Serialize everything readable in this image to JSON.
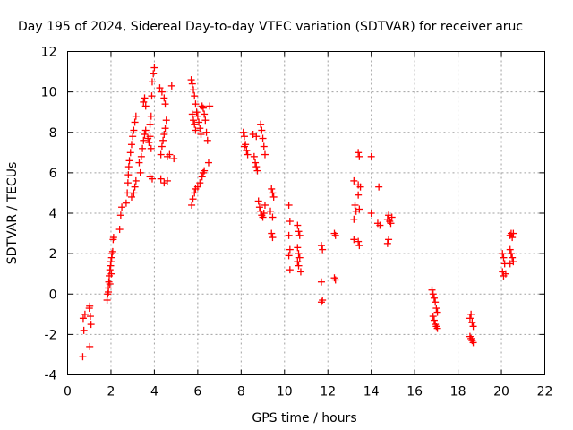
{
  "chart_data": {
    "type": "scatter",
    "title": "Day 195 of 2024, Sidereal Day-to-day VTEC variation (SDTVAR) for receiver aruc",
    "xlabel": "GPS time / hours",
    "ylabel": "SDTVAR / TECUs",
    "xlim": [
      0,
      22
    ],
    "ylim": [
      -4,
      12
    ],
    "xticks": [
      "0",
      "2",
      "4",
      "6",
      "8",
      "10",
      "12",
      "14",
      "16",
      "18",
      "20",
      "22"
    ],
    "yticks": [
      "-4",
      "-2",
      "0",
      "2",
      "4",
      "6",
      "8",
      "10",
      "12"
    ],
    "grid": true,
    "marker": "+",
    "color": "#ff0000",
    "series": [
      {
        "name": "SDTVAR",
        "points": [
          [
            0.7,
            -3.1
          ],
          [
            0.75,
            -1.8
          ],
          [
            0.72,
            -1.2
          ],
          [
            0.8,
            -1.0
          ],
          [
            1.0,
            -0.7
          ],
          [
            1.02,
            -0.6
          ],
          [
            1.05,
            -1.1
          ],
          [
            1.08,
            -1.5
          ],
          [
            1.02,
            -2.6
          ],
          [
            1.82,
            -0.3
          ],
          [
            1.85,
            0.0
          ],
          [
            1.88,
            0.3
          ],
          [
            1.9,
            0.6
          ],
          [
            1.92,
            0.9
          ],
          [
            1.95,
            1.2
          ],
          [
            1.98,
            1.4
          ],
          [
            2.0,
            1.6
          ],
          [
            2.03,
            1.8
          ],
          [
            2.05,
            2.0
          ],
          [
            2.08,
            2.1
          ],
          [
            2.1,
            2.7
          ],
          [
            2.12,
            2.8
          ],
          [
            1.88,
            0.1
          ],
          [
            1.95,
            0.5
          ],
          [
            2.02,
            1.0
          ],
          [
            2.4,
            3.2
          ],
          [
            2.45,
            3.9
          ],
          [
            2.5,
            4.3
          ],
          [
            2.7,
            4.5
          ],
          [
            2.75,
            5.0
          ],
          [
            2.78,
            5.5
          ],
          [
            2.8,
            5.9
          ],
          [
            2.82,
            6.3
          ],
          [
            2.85,
            6.6
          ],
          [
            2.9,
            7.0
          ],
          [
            2.95,
            7.4
          ],
          [
            3.0,
            7.8
          ],
          [
            3.05,
            8.1
          ],
          [
            3.1,
            8.5
          ],
          [
            3.15,
            8.8
          ],
          [
            2.95,
            4.8
          ],
          [
            3.05,
            5.0
          ],
          [
            3.1,
            5.3
          ],
          [
            3.15,
            5.6
          ],
          [
            3.3,
            6.5
          ],
          [
            3.35,
            6.0
          ],
          [
            3.4,
            6.8
          ],
          [
            3.45,
            7.2
          ],
          [
            3.5,
            7.6
          ],
          [
            3.55,
            7.9
          ],
          [
            3.6,
            8.1
          ],
          [
            3.5,
            9.5
          ],
          [
            3.55,
            9.7
          ],
          [
            3.6,
            9.3
          ],
          [
            3.7,
            7.7
          ],
          [
            3.75,
            7.5
          ],
          [
            3.8,
            7.8
          ],
          [
            3.85,
            7.2
          ],
          [
            3.9,
            10.5
          ],
          [
            3.95,
            10.9
          ],
          [
            4.0,
            11.2
          ],
          [
            3.88,
            9.8
          ],
          [
            3.8,
            8.4
          ],
          [
            3.85,
            8.8
          ],
          [
            3.8,
            5.8
          ],
          [
            3.9,
            5.7
          ],
          [
            4.3,
            6.9
          ],
          [
            4.35,
            7.3
          ],
          [
            4.4,
            7.6
          ],
          [
            4.45,
            7.9
          ],
          [
            4.5,
            8.2
          ],
          [
            4.55,
            8.6
          ],
          [
            4.25,
            10.2
          ],
          [
            4.35,
            10.0
          ],
          [
            4.45,
            9.7
          ],
          [
            4.5,
            9.4
          ],
          [
            4.6,
            6.8
          ],
          [
            4.7,
            6.9
          ],
          [
            4.8,
            10.3
          ],
          [
            4.9,
            6.7
          ],
          [
            4.3,
            5.7
          ],
          [
            4.45,
            5.5
          ],
          [
            4.6,
            5.6
          ],
          [
            5.7,
            10.6
          ],
          [
            5.75,
            10.4
          ],
          [
            5.8,
            10.1
          ],
          [
            5.85,
            9.8
          ],
          [
            5.9,
            9.4
          ],
          [
            5.95,
            9.0
          ],
          [
            6.0,
            8.8
          ],
          [
            6.05,
            8.5
          ],
          [
            6.1,
            8.2
          ],
          [
            6.15,
            7.9
          ],
          [
            5.75,
            8.9
          ],
          [
            5.8,
            8.6
          ],
          [
            5.85,
            8.4
          ],
          [
            5.9,
            8.1
          ],
          [
            6.2,
            9.3
          ],
          [
            6.25,
            9.2
          ],
          [
            6.3,
            8.9
          ],
          [
            6.35,
            8.6
          ],
          [
            6.4,
            8.0
          ],
          [
            5.72,
            4.4
          ],
          [
            5.78,
            4.7
          ],
          [
            5.85,
            5.0
          ],
          [
            5.9,
            5.2
          ],
          [
            6.0,
            5.3
          ],
          [
            6.1,
            5.5
          ],
          [
            6.2,
            5.8
          ],
          [
            6.25,
            6.0
          ],
          [
            6.3,
            6.1
          ],
          [
            6.5,
            6.5
          ],
          [
            6.45,
            7.6
          ],
          [
            6.55,
            9.3
          ],
          [
            8.1,
            8.0
          ],
          [
            8.15,
            7.8
          ],
          [
            8.2,
            7.4
          ],
          [
            8.25,
            7.1
          ],
          [
            8.3,
            6.9
          ],
          [
            8.15,
            7.3
          ],
          [
            8.55,
            7.9
          ],
          [
            8.6,
            6.8
          ],
          [
            8.65,
            6.5
          ],
          [
            8.7,
            6.3
          ],
          [
            8.75,
            6.1
          ],
          [
            8.7,
            7.8
          ],
          [
            8.8,
            4.6
          ],
          [
            8.85,
            4.3
          ],
          [
            8.9,
            4.1
          ],
          [
            8.95,
            3.9
          ],
          [
            9.0,
            3.8
          ],
          [
            9.05,
            4.0
          ],
          [
            8.9,
            8.4
          ],
          [
            8.95,
            8.1
          ],
          [
            9.0,
            7.7
          ],
          [
            9.05,
            7.3
          ],
          [
            9.1,
            6.9
          ],
          [
            9.1,
            4.4
          ],
          [
            9.4,
            5.2
          ],
          [
            9.45,
            5.0
          ],
          [
            9.5,
            4.8
          ],
          [
            9.35,
            4.1
          ],
          [
            9.45,
            3.8
          ],
          [
            9.4,
            3.0
          ],
          [
            9.45,
            2.8
          ],
          [
            10.2,
            4.4
          ],
          [
            10.25,
            3.6
          ],
          [
            10.2,
            2.9
          ],
          [
            10.25,
            2.2
          ],
          [
            10.2,
            1.9
          ],
          [
            10.25,
            1.2
          ],
          [
            10.6,
            3.4
          ],
          [
            10.65,
            3.1
          ],
          [
            10.7,
            2.9
          ],
          [
            10.6,
            2.3
          ],
          [
            10.65,
            2.0
          ],
          [
            10.7,
            1.8
          ],
          [
            10.6,
            1.6
          ],
          [
            10.65,
            1.4
          ],
          [
            10.75,
            1.1
          ],
          [
            11.7,
            2.4
          ],
          [
            11.75,
            2.2
          ],
          [
            11.7,
            0.6
          ],
          [
            11.75,
            -0.3
          ],
          [
            11.7,
            -0.4
          ],
          [
            12.3,
            3.0
          ],
          [
            12.35,
            2.9
          ],
          [
            12.3,
            0.8
          ],
          [
            12.35,
            0.7
          ],
          [
            13.2,
            5.6
          ],
          [
            13.25,
            4.4
          ],
          [
            13.2,
            3.7
          ],
          [
            13.3,
            4.1
          ],
          [
            13.2,
            2.7
          ],
          [
            13.4,
            7.0
          ],
          [
            13.45,
            6.8
          ],
          [
            13.4,
            5.4
          ],
          [
            13.5,
            5.3
          ],
          [
            13.4,
            4.9
          ],
          [
            13.45,
            4.2
          ],
          [
            13.4,
            2.6
          ],
          [
            13.45,
            2.4
          ],
          [
            14.0,
            6.8
          ],
          [
            14.0,
            4.0
          ],
          [
            14.3,
            3.5
          ],
          [
            14.35,
            5.3
          ],
          [
            14.4,
            3.4
          ],
          [
            14.75,
            3.7
          ],
          [
            14.8,
            3.9
          ],
          [
            14.85,
            3.6
          ],
          [
            14.9,
            3.5
          ],
          [
            14.95,
            3.8
          ],
          [
            14.8,
            2.7
          ],
          [
            14.75,
            2.5
          ],
          [
            16.8,
            0.2
          ],
          [
            16.85,
            0.0
          ],
          [
            16.9,
            -0.2
          ],
          [
            16.95,
            -0.4
          ],
          [
            17.0,
            -0.7
          ],
          [
            17.05,
            -0.9
          ],
          [
            16.85,
            -1.1
          ],
          [
            16.9,
            -1.3
          ],
          [
            16.95,
            -1.5
          ],
          [
            17.0,
            -1.6
          ],
          [
            17.05,
            -1.7
          ],
          [
            18.55,
            -1.2
          ],
          [
            18.6,
            -1.0
          ],
          [
            18.65,
            -1.4
          ],
          [
            18.7,
            -1.6
          ],
          [
            18.55,
            -2.1
          ],
          [
            18.6,
            -2.2
          ],
          [
            18.65,
            -2.3
          ],
          [
            18.7,
            -2.4
          ],
          [
            20.05,
            2.0
          ],
          [
            20.1,
            1.8
          ],
          [
            20.15,
            1.5
          ],
          [
            20.05,
            1.1
          ],
          [
            20.1,
            0.9
          ],
          [
            20.2,
            1.0
          ],
          [
            20.4,
            2.9
          ],
          [
            20.45,
            3.0
          ],
          [
            20.5,
            2.8
          ],
          [
            20.55,
            3.0
          ],
          [
            20.4,
            2.2
          ],
          [
            20.45,
            2.0
          ],
          [
            20.5,
            1.8
          ],
          [
            20.55,
            1.6
          ],
          [
            20.4,
            1.5
          ]
        ]
      }
    ]
  }
}
